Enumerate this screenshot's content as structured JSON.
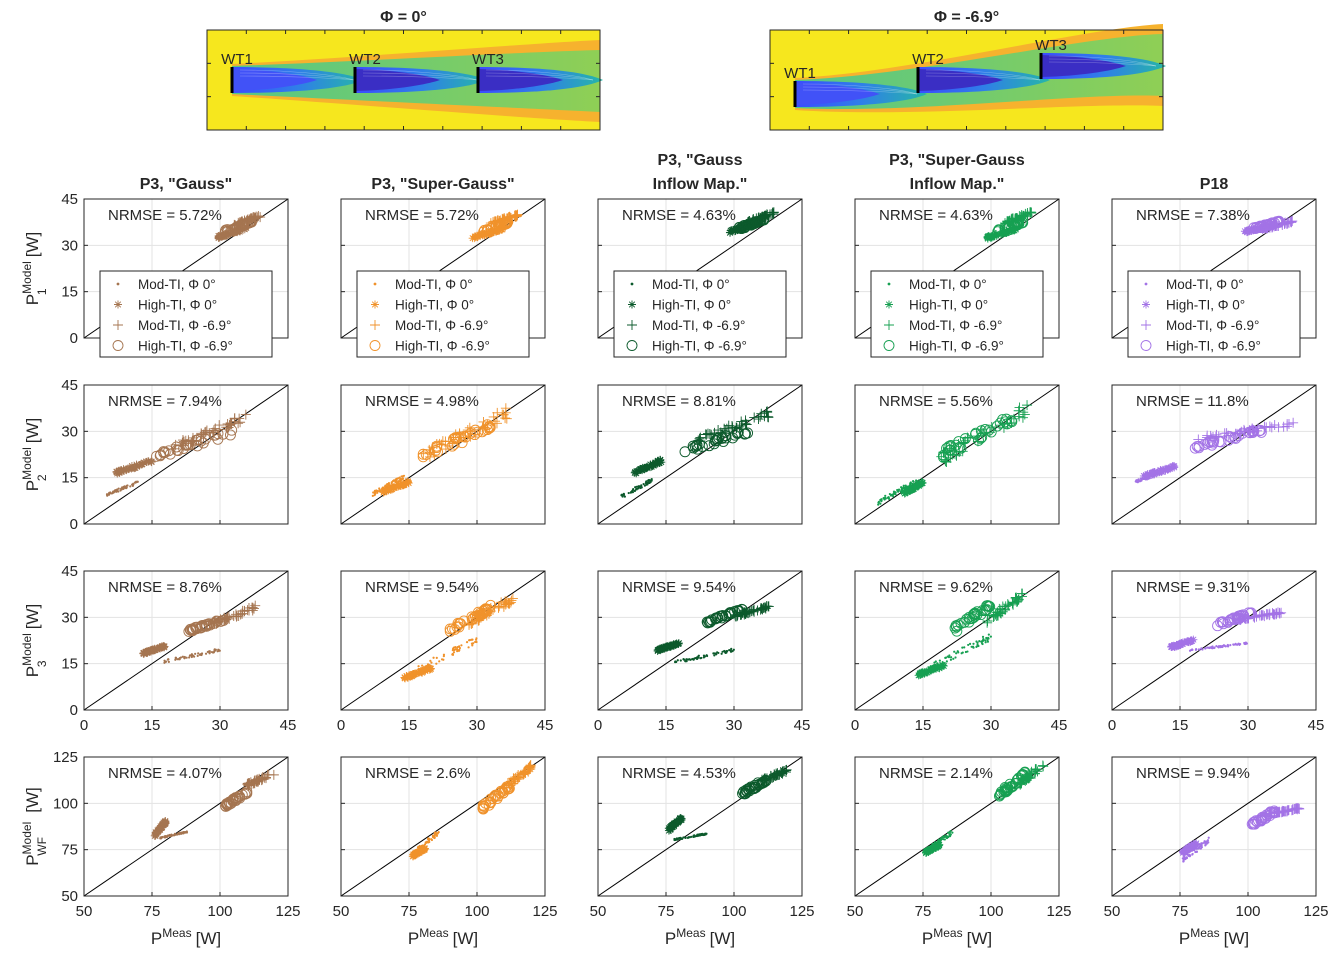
{
  "contours": [
    {
      "title": "Φ = 0°",
      "turbines": [
        "WT1",
        "WT2",
        "WT3"
      ]
    },
    {
      "title": "Φ = -6.9°",
      "turbines": [
        "WT1",
        "WT2",
        "WT3"
      ]
    }
  ],
  "legend": {
    "entries": [
      "Mod-TI, Φ 0°",
      "High-TI, Φ 0°",
      "Mod-TI, Φ -6.9°",
      "High-TI, Φ -6.9°"
    ],
    "markers": [
      "dot",
      "asterisk",
      "plus",
      "circle"
    ]
  },
  "columns": [
    {
      "title": [
        "P3, \"Gauss\""
      ],
      "color": "#a57550"
    },
    {
      "title": [
        "P3, \"Super-Gauss\""
      ],
      "color": "#f0922b"
    },
    {
      "title": [
        "P3, \"Gauss",
        "Inflow Map.\""
      ],
      "color": "#0c5a2c"
    },
    {
      "title": [
        "P3, \"Super-Gauss",
        "Inflow Map.\""
      ],
      "color": "#17a052"
    },
    {
      "title": [
        "P18"
      ],
      "color": "#a373e6"
    }
  ],
  "rows": [
    {
      "ylabel": {
        "base": "P",
        "sup": "Model",
        "sub": "1",
        "unit": "[W]"
      },
      "ticks": [
        "0",
        "15",
        "30",
        "45"
      ],
      "lim": [
        0,
        45
      ]
    },
    {
      "ylabel": {
        "base": "P",
        "sup": "Model",
        "sub": "2",
        "unit": "[W]"
      },
      "ticks": [
        "0",
        "15",
        "30",
        "45"
      ],
      "lim": [
        0,
        45
      ]
    },
    {
      "ylabel": {
        "base": "P",
        "sup": "Model",
        "sub": "3",
        "unit": "[W]"
      },
      "ticks": [
        "0",
        "15",
        "30",
        "45"
      ],
      "lim": [
        0,
        45
      ]
    },
    {
      "ylabel": {
        "base": "P",
        "sup": "Model",
        "sub": "WF",
        "unit": "[W]"
      },
      "ticks": [
        "50",
        "75",
        "100",
        "125"
      ],
      "lim": [
        50,
        125
      ]
    }
  ],
  "xlabel": {
    "base": "P",
    "sup": "Meas",
    "unit": "[W]"
  },
  "nrmse_prefix": "NRMSE = ",
  "nrmse": [
    [
      "5.72%",
      "5.72%",
      "4.63%",
      "4.63%",
      "7.38%"
    ],
    [
      "7.94%",
      "4.98%",
      "8.81%",
      "5.56%",
      "11.8%"
    ],
    [
      "8.76%",
      "9.54%",
      "9.54%",
      "9.62%",
      "9.31%"
    ],
    [
      "4.07%",
      "2.6%",
      "4.53%",
      "2.14%",
      "9.94%"
    ]
  ],
  "chart_data": {
    "type": "scatter",
    "description_of_series": "Each panel: P_model vs P_meas; four series per panel with 1:1 reference line",
    "series_names": [
      "Mod-TI, Φ 0°",
      "High-TI, Φ 0°",
      "Mod-TI, Φ -6.9°",
      "High-TI, Φ -6.9°"
    ],
    "clusters": [
      [
        [
          {
            "cx": [
              29,
              36
            ],
            "cy": [
              32,
              36
            ]
          },
          {
            "cx": [
              29,
              36
            ],
            "cy": [
              32,
              36
            ]
          },
          {
            "cx": [
              33,
              39
            ],
            "cy": [
              36,
              40
            ]
          },
          {
            "cx": [
              31,
              37
            ],
            "cy": [
              34,
              38
            ]
          }
        ],
        [
          {
            "cx": [
              29,
              36
            ],
            "cy": [
              32,
              36
            ]
          },
          {
            "cx": [
              29,
              36
            ],
            "cy": [
              32,
              36
            ]
          },
          {
            "cx": [
              33,
              39
            ],
            "cy": [
              37,
              40
            ]
          },
          {
            "cx": [
              31,
              37
            ],
            "cy": [
              34,
              38
            ]
          }
        ],
        [
          {
            "cx": [
              29,
              36
            ],
            "cy": [
              34,
              38
            ]
          },
          {
            "cx": [
              29,
              36
            ],
            "cy": [
              34,
              38
            ]
          },
          {
            "cx": [
              33,
              39
            ],
            "cy": [
              37,
              41
            ]
          },
          {
            "cx": [
              31,
              37
            ],
            "cy": [
              35,
              39
            ]
          }
        ],
        [
          {
            "cx": [
              29,
              36
            ],
            "cy": [
              32,
              36
            ]
          },
          {
            "cx": [
              29,
              36
            ],
            "cy": [
              32,
              36
            ]
          },
          {
            "cx": [
              33,
              39
            ],
            "cy": [
              37,
              41
            ]
          },
          {
            "cx": [
              31,
              37
            ],
            "cy": [
              34,
              38
            ]
          }
        ],
        [
          {
            "cx": [
              29,
              36
            ],
            "cy": [
              34,
              37
            ]
          },
          {
            "cx": [
              29,
              36
            ],
            "cy": [
              34,
              37
            ]
          },
          {
            "cx": [
              33,
              40
            ],
            "cy": [
              35,
              38
            ]
          },
          {
            "cx": [
              31,
              37
            ],
            "cy": [
              35,
              38
            ]
          }
        ]
      ],
      [
        [
          {
            "cx": [
              5,
              12
            ],
            "cy": [
              9,
              14
            ]
          },
          {
            "cx": [
              7,
              15
            ],
            "cy": [
              16,
              21
            ]
          },
          {
            "cx": [
              20,
              36
            ],
            "cy": [
              24,
              36
            ]
          },
          {
            "cx": [
              16,
              33
            ],
            "cy": [
              21,
              31
            ]
          }
        ],
        [
          {
            "cx": [
              7,
              14
            ],
            "cy": [
              9,
              16
            ]
          },
          {
            "cx": [
              9,
              15
            ],
            "cy": [
              10,
              14
            ]
          },
          {
            "cx": [
              18,
              37
            ],
            "cy": [
              20,
              38
            ]
          },
          {
            "cx": [
              17,
              33
            ],
            "cy": [
              20,
              33
            ]
          }
        ],
        [
          {
            "cx": [
              5,
              12
            ],
            "cy": [
              8,
              15
            ]
          },
          {
            "cx": [
              8,
              14
            ],
            "cy": [
              16,
              21
            ]
          },
          {
            "cx": [
              22,
              38
            ],
            "cy": [
              26,
              37
            ]
          },
          {
            "cx": [
              18,
              33
            ],
            "cy": [
              22,
              31
            ]
          }
        ],
        [
          {
            "cx": [
              5,
              14
            ],
            "cy": [
              6,
              15
            ]
          },
          {
            "cx": [
              10,
              15
            ],
            "cy": [
              9,
              14
            ]
          },
          {
            "cx": [
              19,
              39
            ],
            "cy": [
              19,
              40
            ]
          },
          {
            "cx": [
              18,
              35
            ],
            "cy": [
              20,
              36
            ]
          }
        ],
        [
          {
            "cx": [
              5,
              12
            ],
            "cy": [
              13,
              18
            ]
          },
          {
            "cx": [
              7,
              14
            ],
            "cy": [
              15,
              19
            ]
          },
          {
            "cx": [
              19,
              40
            ],
            "cy": [
              27,
              33
            ]
          },
          {
            "cx": [
              18,
              33
            ],
            "cy": [
              24,
              31
            ]
          }
        ]
      ],
      [
        [
          {
            "cx": [
              17,
              30
            ],
            "cy": [
              15,
              20
            ]
          },
          {
            "cx": [
              13,
              18
            ],
            "cy": [
              18,
              21
            ]
          },
          {
            "cx": [
              28,
              38
            ],
            "cy": [
              27,
              34
            ]
          },
          {
            "cx": [
              23,
              31
            ],
            "cy": [
              25,
              30
            ]
          }
        ],
        [
          {
            "cx": [
              17,
              30
            ],
            "cy": [
              12,
              24
            ]
          },
          {
            "cx": [
              14,
              20
            ],
            "cy": [
              10,
              14
            ]
          },
          {
            "cx": [
              28,
              38
            ],
            "cy": [
              27,
              37
            ]
          },
          {
            "cx": [
              24,
              33
            ],
            "cy": [
              25,
              34
            ]
          }
        ],
        [
          {
            "cx": [
              17,
              30
            ],
            "cy": [
              15,
              20
            ]
          },
          {
            "cx": [
              13,
              18
            ],
            "cy": [
              19,
              22
            ]
          },
          {
            "cx": [
              30,
              38
            ],
            "cy": [
              30,
              34
            ]
          },
          {
            "cx": [
              24,
              32
            ],
            "cy": [
              28,
              33
            ]
          }
        ],
        [
          {
            "cx": [
              17,
              30
            ],
            "cy": [
              13,
              25
            ]
          },
          {
            "cx": [
              14,
              20
            ],
            "cy": [
              11,
              15
            ]
          },
          {
            "cx": [
              29,
              37
            ],
            "cy": [
              28,
              38
            ]
          },
          {
            "cx": [
              22,
              30
            ],
            "cy": [
              25,
              35
            ]
          }
        ],
        [
          {
            "cx": [
              17,
              30
            ],
            "cy": [
              19,
              22
            ]
          },
          {
            "cx": [
              13,
              18
            ],
            "cy": [
              20,
              23
            ]
          },
          {
            "cx": [
              28,
              38
            ],
            "cy": [
              29,
              32
            ]
          },
          {
            "cx": [
              23,
              31
            ],
            "cy": [
              27,
              32
            ]
          }
        ]
      ],
      [
        [
          {
            "cx": [
              78,
              88
            ],
            "cy": [
              81,
              85
            ]
          },
          {
            "cx": [
              76,
              80
            ],
            "cy": [
              82,
              91
            ]
          },
          {
            "cx": [
              110,
              120
            ],
            "cy": [
              109,
              117
            ]
          },
          {
            "cx": [
              102,
              110
            ],
            "cy": [
              98,
              107
            ]
          }
        ],
        [
          {
            "cx": [
              77,
              86
            ],
            "cy": [
              72,
              86
            ]
          },
          {
            "cx": [
              76,
              81
            ],
            "cy": [
              71,
              76
            ]
          },
          {
            "cx": [
              110,
              120
            ],
            "cy": [
              107,
              121
            ]
          },
          {
            "cx": [
              102,
              112
            ],
            "cy": [
              96,
              111
            ]
          }
        ],
        [
          {
            "cx": [
              78,
              90
            ],
            "cy": [
              80,
              84
            ]
          },
          {
            "cx": [
              76,
              81
            ],
            "cy": [
              85,
              93
            ]
          },
          {
            "cx": [
              110,
              120
            ],
            "cy": [
              111,
              119
            ]
          },
          {
            "cx": [
              103,
              112
            ],
            "cy": [
              104,
              114
            ]
          }
        ],
        [
          {
            "cx": [
              76,
              86
            ],
            "cy": [
              73,
              86
            ]
          },
          {
            "cx": [
              76,
              81
            ],
            "cy": [
              73,
              78
            ]
          },
          {
            "cx": [
              110,
              120
            ],
            "cy": [
              109,
              123
            ]
          },
          {
            "cx": [
              103,
              113
            ],
            "cy": [
              103,
              118
            ]
          }
        ],
        [
          {
            "cx": [
              76,
              86
            ],
            "cy": [
              68,
              82
            ]
          },
          {
            "cx": [
              76,
              81
            ],
            "cy": [
              73,
              79
            ]
          },
          {
            "cx": [
              108,
              120
            ],
            "cy": [
              94,
              98
            ]
          },
          {
            "cx": [
              101,
              110
            ],
            "cy": [
              87,
              97
            ]
          }
        ]
      ]
    ],
    "reference_line": "y = x"
  }
}
